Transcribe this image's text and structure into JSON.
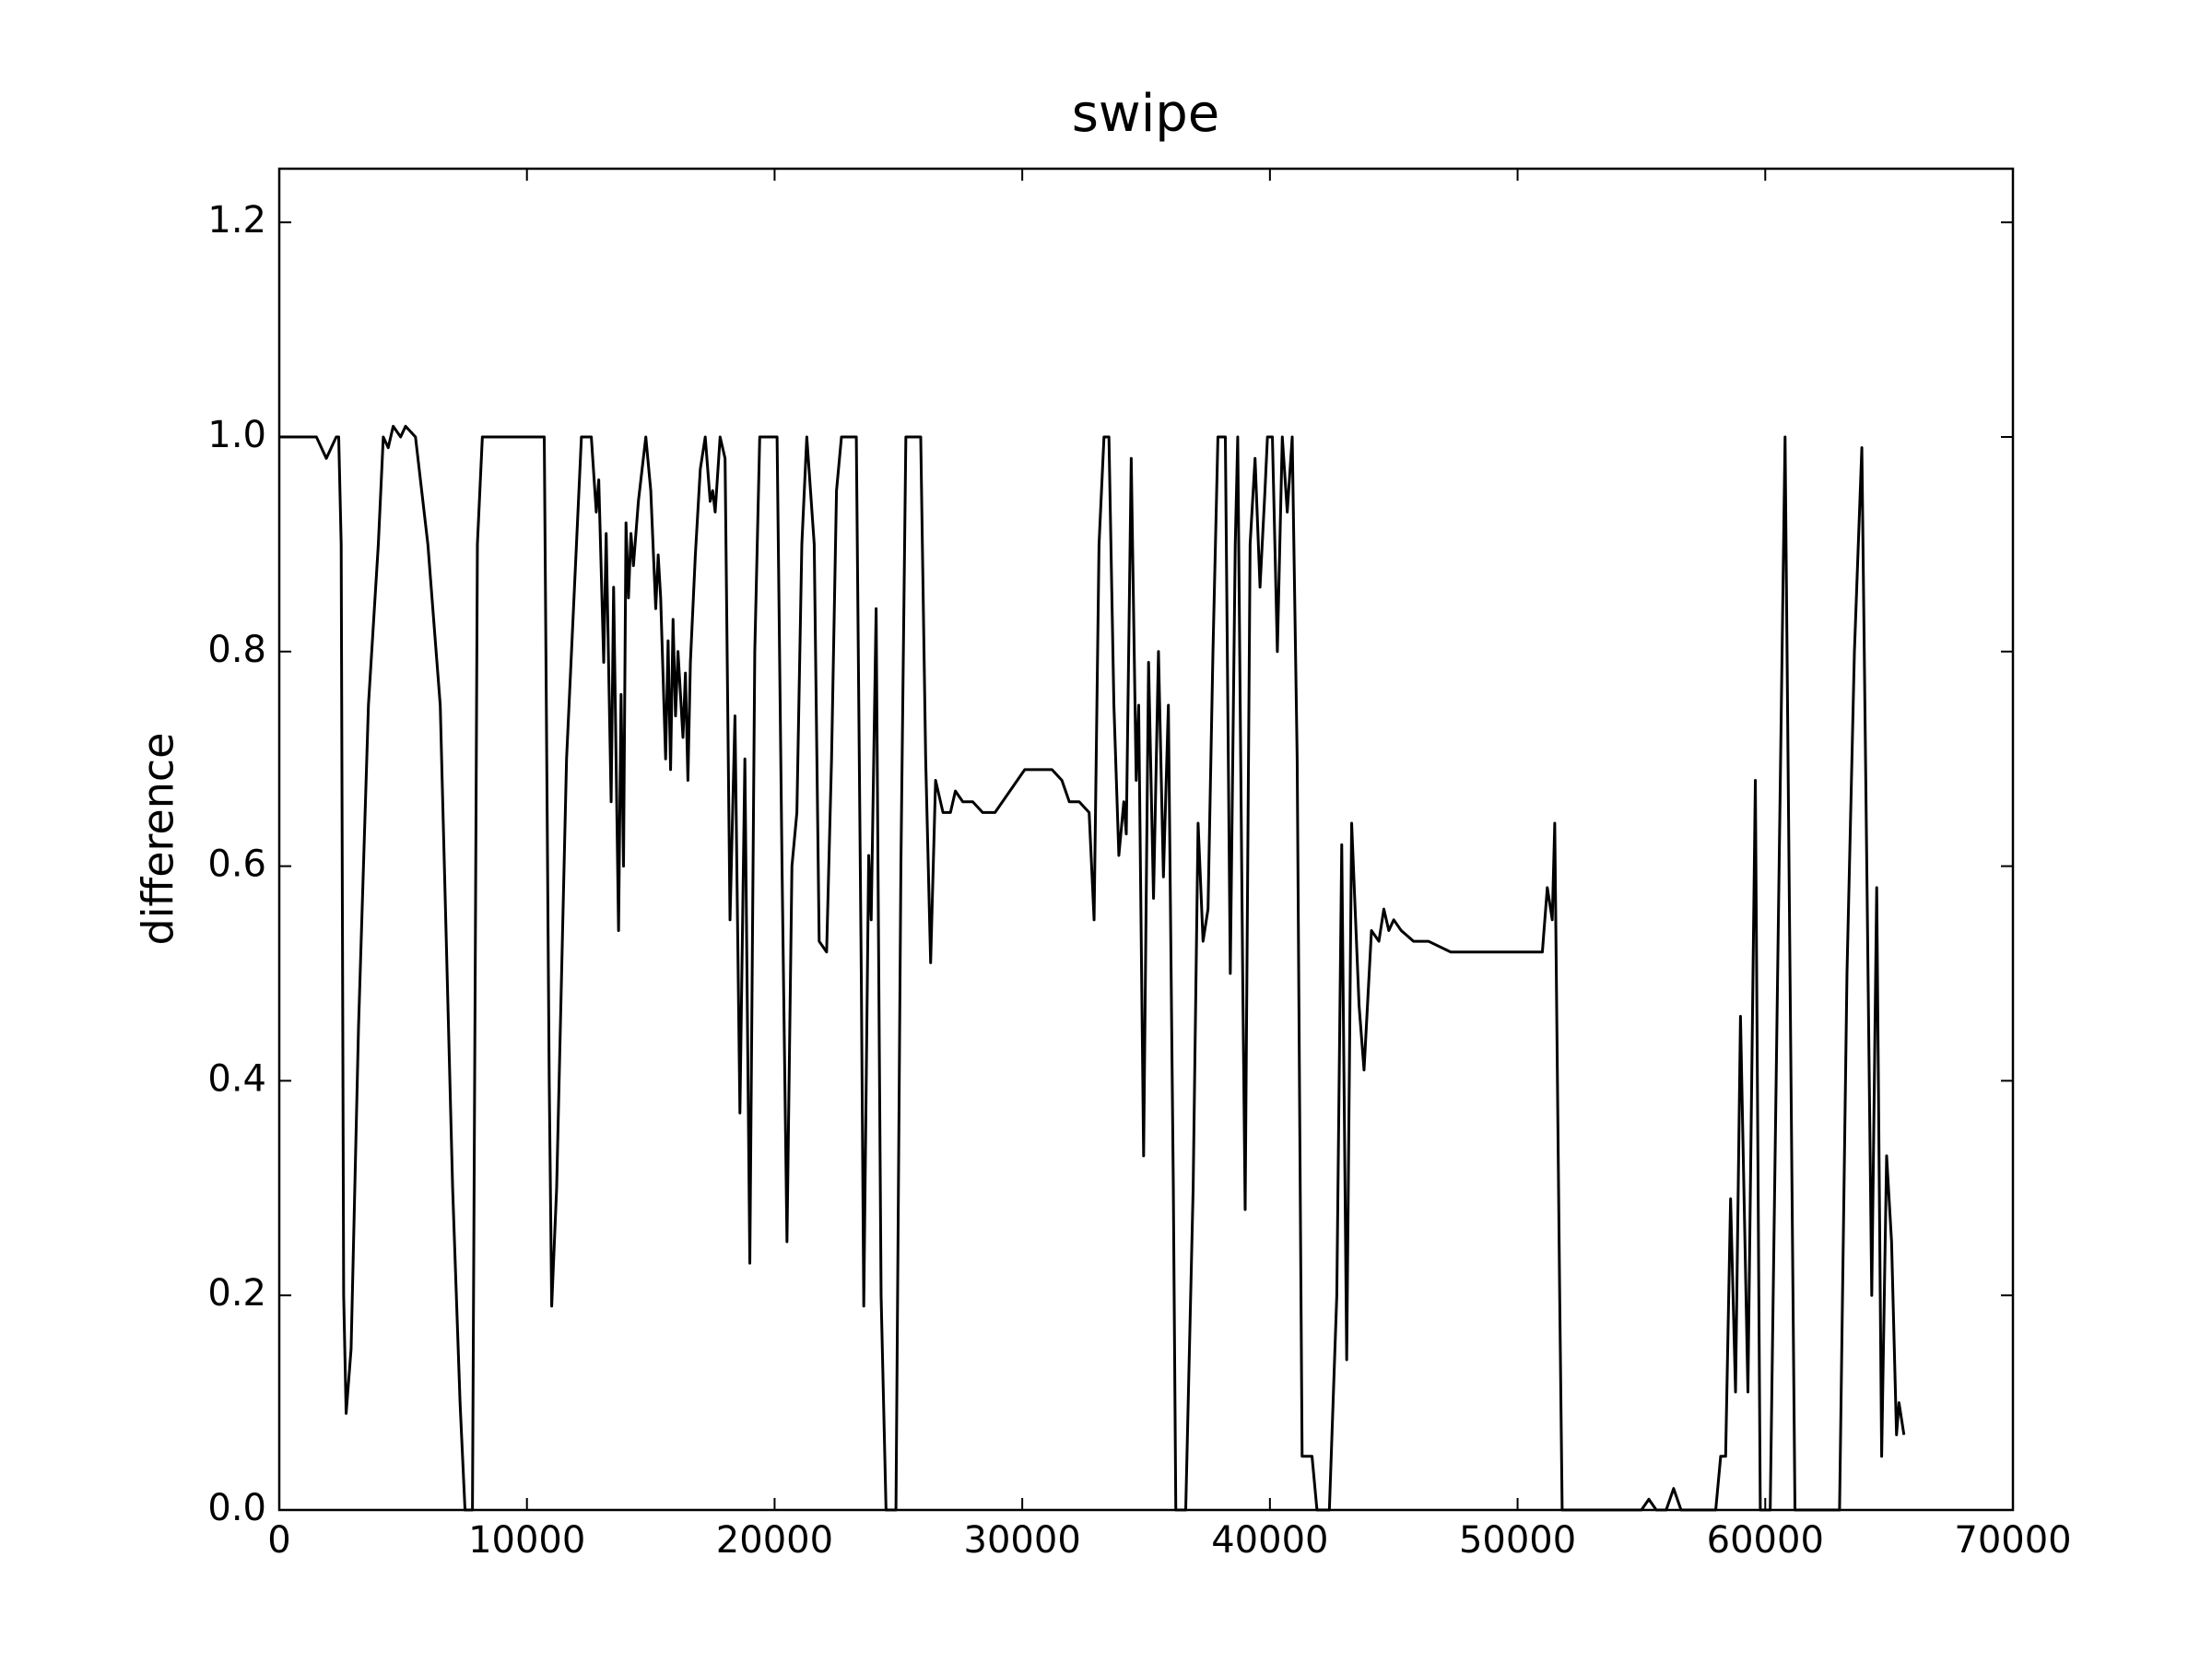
{
  "chart_data": {
    "type": "line",
    "title": "swipe",
    "y_label": "difference",
    "color": "#000000",
    "xlim": [
      0,
      70000
    ],
    "xticks": [
      0,
      10000,
      20000,
      30000,
      40000,
      50000,
      60000,
      70000
    ],
    "ylim": [
      0,
      1.25
    ],
    "yticks": [
      {
        "value": 0,
        "label": "0.0"
      },
      0.2,
      0.4,
      0.6,
      0.8,
      {
        "value": 1,
        "label": "1.0"
      },
      1.2
    ],
    "x": [
      0,
      800,
      1500,
      1900,
      2300,
      2400,
      2500,
      2600,
      2700,
      2900,
      3200,
      3600,
      4000,
      4200,
      4400,
      4600,
      4900,
      5100,
      5500,
      6000,
      6500,
      7000,
      7300,
      7500,
      7800,
      8000,
      8200,
      10700,
      10900,
      11000,
      11200,
      11600,
      12000,
      12200,
      12600,
      12800,
      12900,
      13100,
      13200,
      13400,
      13500,
      13700,
      13800,
      13900,
      14000,
      14100,
      14200,
      14300,
      14500,
      14800,
      15000,
      15200,
      15300,
      15400,
      15600,
      15700,
      15800,
      15900,
      16000,
      16100,
      16300,
      16400,
      16500,
      16600,
      16800,
      17000,
      17200,
      17400,
      17500,
      17600,
      17800,
      18000,
      18200,
      18400,
      18600,
      18800,
      19000,
      19200,
      19400,
      20100,
      20300,
      20500,
      20700,
      20900,
      21100,
      21300,
      21600,
      21800,
      22100,
      22300,
      22500,
      22700,
      23300,
      23500,
      23600,
      23800,
      23900,
      24100,
      24300,
      24500,
      24900,
      25100,
      25300,
      25900,
      26100,
      26300,
      26500,
      26800,
      27100,
      27300,
      27600,
      28000,
      28400,
      28900,
      29200,
      29500,
      29800,
      30100,
      30400,
      30800,
      31200,
      31600,
      31900,
      32300,
      32700,
      32900,
      33100,
      33300,
      33500,
      33700,
      33900,
      34100,
      34200,
      34400,
      34600,
      34700,
      34900,
      35100,
      35300,
      35500,
      35700,
      35900,
      36100,
      36200,
      36600,
      36900,
      37100,
      37300,
      37500,
      37700,
      37900,
      38200,
      38400,
      38600,
      38700,
      38900,
      39000,
      39200,
      39400,
      39600,
      39800,
      39900,
      40100,
      40300,
      40500,
      40700,
      40900,
      41100,
      41300,
      41500,
      41700,
      41900,
      42400,
      42700,
      42900,
      43100,
      43300,
      43600,
      43800,
      44100,
      44400,
      44600,
      44800,
      45000,
      45300,
      45800,
      46400,
      47300,
      48500,
      49500,
      50500,
      51000,
      51200,
      51400,
      51500,
      51700,
      51800,
      55000,
      55300,
      55600,
      56000,
      56300,
      56600,
      58000,
      58200,
      58400,
      58600,
      58800,
      59000,
      59300,
      59600,
      59800,
      60200,
      60500,
      60800,
      61000,
      61200,
      63000,
      63300,
      63600,
      63900,
      64100,
      64300,
      64500,
      64700,
      64900,
      65100,
      65300,
      65400,
      65600
    ],
    "values": [
      1.0,
      1.0,
      1.0,
      0.98,
      1.0,
      1.0,
      0.9,
      0.2,
      0.09,
      0.15,
      0.45,
      0.75,
      0.9,
      1.0,
      0.99,
      1.01,
      1.0,
      1.01,
      1.0,
      0.9,
      0.75,
      0.3,
      0.1,
      0.0,
      0.0,
      0.9,
      1.0,
      1.0,
      0.4,
      0.19,
      0.3,
      0.7,
      0.9,
      1.0,
      1.0,
      0.93,
      0.96,
      0.79,
      0.91,
      0.66,
      0.86,
      0.54,
      0.76,
      0.6,
      0.92,
      0.85,
      0.91,
      0.88,
      0.94,
      1.0,
      0.95,
      0.84,
      0.89,
      0.85,
      0.7,
      0.81,
      0.69,
      0.83,
      0.74,
      0.8,
      0.72,
      0.78,
      0.68,
      0.79,
      0.89,
      0.97,
      1.0,
      0.94,
      0.95,
      0.93,
      1.0,
      0.98,
      0.55,
      0.74,
      0.37,
      0.7,
      0.23,
      0.8,
      1.0,
      1.0,
      0.6,
      0.25,
      0.6,
      0.65,
      0.9,
      1.0,
      0.9,
      0.53,
      0.52,
      0.7,
      0.95,
      1.0,
      1.0,
      0.5,
      0.19,
      0.61,
      0.55,
      0.84,
      0.2,
      0.0,
      0.0,
      0.6,
      1.0,
      1.0,
      0.7,
      0.51,
      0.68,
      0.65,
      0.65,
      0.67,
      0.66,
      0.66,
      0.65,
      0.65,
      0.66,
      0.67,
      0.68,
      0.69,
      0.69,
      0.69,
      0.69,
      0.68,
      0.66,
      0.66,
      0.65,
      0.55,
      0.9,
      1.0,
      1.0,
      0.75,
      0.61,
      0.66,
      0.63,
      0.98,
      0.68,
      0.75,
      0.33,
      0.79,
      0.57,
      0.8,
      0.59,
      0.75,
      0.3,
      0.0,
      0.0,
      0.3,
      0.64,
      0.53,
      0.56,
      0.8,
      1.0,
      1.0,
      0.5,
      0.9,
      1.0,
      0.5,
      0.28,
      0.9,
      0.98,
      0.86,
      0.95,
      1.0,
      1.0,
      0.8,
      1.0,
      0.93,
      1.0,
      0.7,
      0.05,
      0.05,
      0.05,
      0.0,
      0.0,
      0.2,
      0.62,
      0.14,
      0.64,
      0.47,
      0.41,
      0.54,
      0.53,
      0.56,
      0.54,
      0.55,
      0.54,
      0.53,
      0.53,
      0.52,
      0.52,
      0.52,
      0.52,
      0.52,
      0.58,
      0.55,
      0.64,
      0.2,
      0.0,
      0.0,
      0.01,
      0.0,
      0.0,
      0.02,
      0.0,
      0.0,
      0.05,
      0.05,
      0.29,
      0.11,
      0.46,
      0.11,
      0.68,
      0.0,
      0.0,
      0.5,
      1.0,
      0.5,
      0.0,
      0.0,
      0.5,
      0.8,
      0.99,
      0.6,
      0.2,
      0.58,
      0.05,
      0.33,
      0.25,
      0.07,
      0.1,
      0.07
    ]
  }
}
